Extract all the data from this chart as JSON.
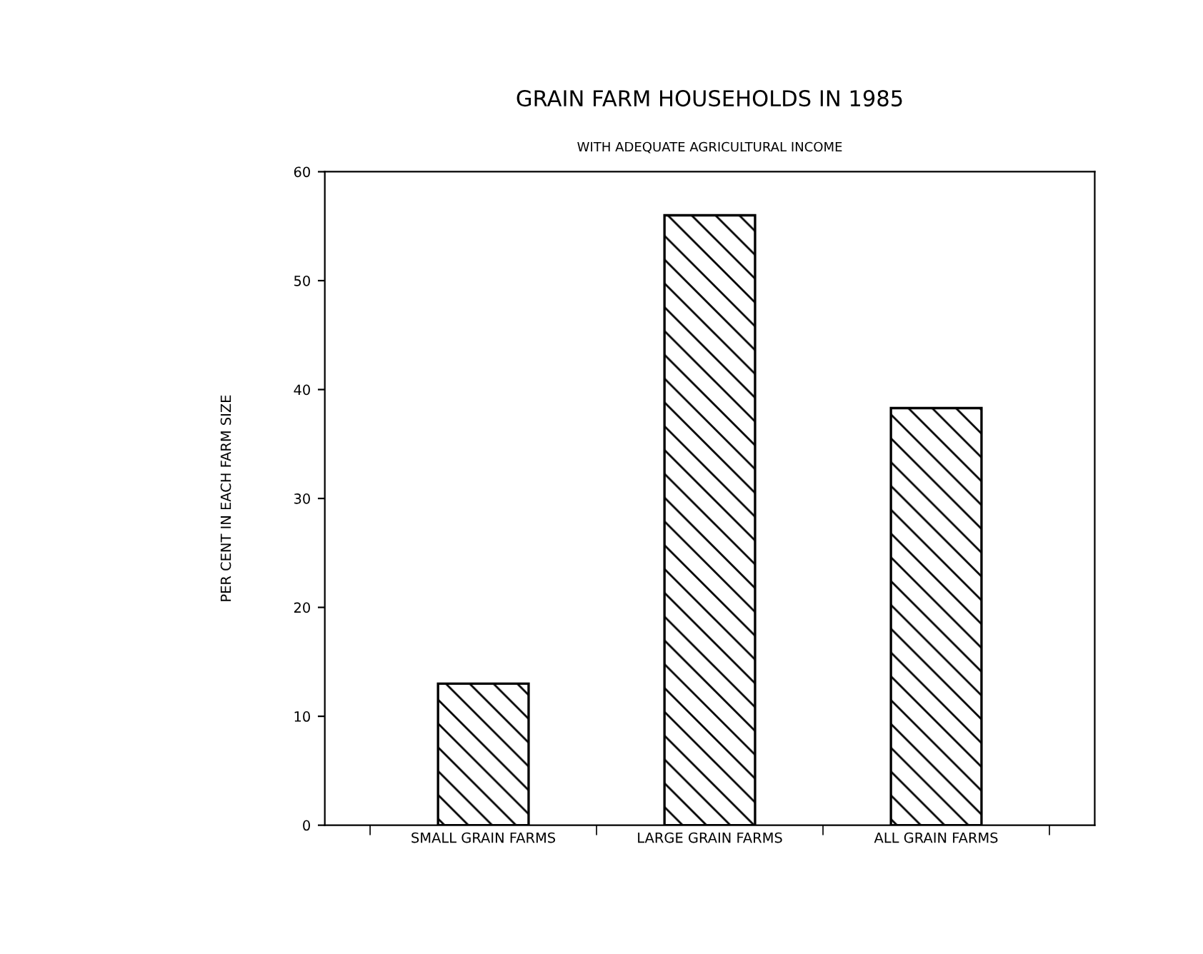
{
  "chart_data": {
    "type": "bar",
    "title": "GRAIN FARM HOUSEHOLDS IN 1985",
    "subtitle": "WITH ADEQUATE AGRICULTURAL INCOME",
    "ylabel": "PER CENT IN EACH FARM SIZE",
    "categories": [
      "SMALL GRAIN FARMS",
      "LARGE GRAIN FARMS",
      "ALL GRAIN FARMS"
    ],
    "values": [
      13,
      56,
      38.3
    ],
    "color": "#000000",
    "ylim": [
      0,
      60
    ],
    "yticks": [
      0,
      10,
      20,
      30,
      40,
      50,
      60
    ],
    "grid": false,
    "legend": false
  }
}
